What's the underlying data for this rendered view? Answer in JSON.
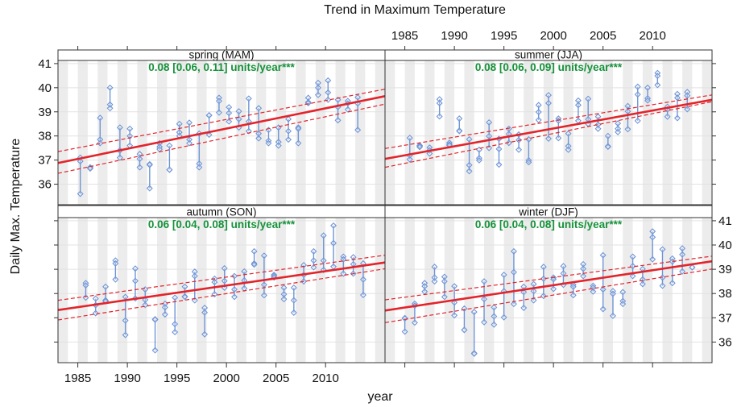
{
  "chart_data": {
    "type": "line",
    "title": "Trend in Maximum Temperature",
    "xlabel": "year",
    "ylabel": "Daily Max. Temperature",
    "xlim": [
      1983,
      2016
    ],
    "ylim": [
      35.15,
      41.13
    ],
    "x_ticks": [
      1985,
      1990,
      1995,
      2000,
      2005,
      2010
    ],
    "y_ticks": [
      36,
      37,
      38,
      39,
      40,
      41
    ],
    "grid": "horizontal lines at y ticks; alternating grey year bands",
    "colors": {
      "points": "#6f95d6",
      "trend": "#e3242b",
      "trend_label": "#16923a",
      "band": "#ececec",
      "grid": "#e2e2e2"
    },
    "panels": [
      {
        "strip": "spring (MAM)",
        "trend_label": "0.08 [0.06, 0.11] units/year***",
        "years": [
          1985,
          1986,
          1987,
          1988,
          1989,
          1990,
          1991,
          1992,
          1993,
          1994,
          1995,
          1996,
          1997,
          1998,
          1999,
          2000,
          2001,
          2002,
          2003,
          2004,
          2005,
          2006,
          2007,
          2008,
          2009,
          2010,
          2011,
          2012,
          2013
        ],
        "values": [
          [
            37.1,
            36.95,
            35.6
          ],
          [
            36.7,
            36.67,
            36.65
          ],
          [
            38.75,
            37.85,
            37.7
          ],
          [
            40.0,
            39.3,
            39.15
          ],
          [
            38.35,
            37.4,
            37.1
          ],
          [
            38.3,
            38.0,
            37.6
          ],
          [
            37.25,
            37.05,
            36.7
          ],
          [
            36.83,
            36.8,
            35.83
          ],
          [
            37.7,
            37.55,
            37.45
          ],
          [
            37.6,
            36.6,
            36.6
          ],
          [
            38.5,
            38.15,
            38.0
          ],
          [
            38.55,
            37.85,
            37.7
          ],
          [
            38.1,
            36.85,
            36.7
          ],
          [
            38.86,
            38.85,
            38.05
          ],
          [
            39.58,
            39.45,
            38.97
          ],
          [
            39.19,
            38.95,
            38.6
          ],
          [
            39.02,
            38.7,
            38.35
          ],
          [
            39.55,
            38.6,
            38.2
          ],
          [
            39.15,
            38.1,
            37.9
          ],
          [
            38.25,
            37.8,
            37.7
          ],
          [
            38.35,
            37.75,
            37.6
          ],
          [
            38.7,
            38.2,
            37.85
          ],
          [
            38.35,
            38.3,
            37.7
          ],
          [
            39.58,
            39.4,
            39.36
          ],
          [
            40.2,
            40.0,
            39.7
          ],
          [
            40.3,
            39.8,
            39.5
          ],
          [
            39.5,
            39.2,
            38.65
          ],
          [
            39.45,
            39.35,
            39.1
          ],
          [
            39.6,
            39.35,
            38.25
          ]
        ],
        "trend": {
          "x": [
            1983,
            2016
          ],
          "fit": [
            36.88,
            39.65
          ],
          "lower": [
            36.45,
            39.32
          ],
          "upper": [
            37.35,
            39.94
          ]
        }
      },
      {
        "strip": "summer (JJA)",
        "trend_label": "0.08 [0.06, 0.09] units/year***",
        "years": [
          1985,
          1986,
          1987,
          1988,
          1989,
          1990,
          1991,
          1992,
          1993,
          1994,
          1995,
          1996,
          1997,
          1998,
          1999,
          2000,
          2001,
          2002,
          2003,
          2004,
          2005,
          2006,
          2007,
          2008,
          2009,
          2010,
          2011,
          2012,
          2013
        ],
        "values": [
          [
            37.92,
            37.19,
            37.03
          ],
          [
            37.61,
            37.58,
            37.54
          ],
          [
            37.52,
            37.41,
            37.27
          ],
          [
            39.52,
            39.36,
            38.81
          ],
          [
            37.72,
            37.65,
            37.61
          ],
          [
            38.72,
            38.22,
            38.2
          ],
          [
            37.86,
            36.79,
            36.54
          ],
          [
            37.43,
            37.08,
            36.99
          ],
          [
            38.56,
            37.99,
            37.5
          ],
          [
            37.88,
            37.46,
            36.81
          ],
          [
            38.3,
            38.08,
            37.71
          ],
          [
            38.06,
            37.83,
            37.43
          ],
          [
            37.86,
            36.99,
            36.91
          ],
          [
            39.28,
            38.99,
            38.66
          ],
          [
            39.69,
            39.36,
            37.89
          ],
          [
            38.72,
            38.63,
            37.91
          ],
          [
            38.1,
            37.58,
            37.43
          ],
          [
            39.47,
            39.28,
            38.63
          ],
          [
            39.54,
            38.69,
            38.5
          ],
          [
            38.8,
            38.47,
            38.3
          ],
          [
            38.0,
            37.57,
            37.55
          ],
          [
            38.52,
            38.3,
            38.16
          ],
          [
            39.24,
            39.02,
            38.28
          ],
          [
            40.04,
            39.72,
            38.63
          ],
          [
            40.0,
            39.56,
            39.47
          ],
          [
            40.61,
            40.49,
            40.11
          ],
          [
            39.21,
            39.1,
            38.8
          ],
          [
            39.74,
            39.58,
            38.74
          ],
          [
            39.82,
            39.67,
            39.11
          ]
        ],
        "trend": {
          "x": [
            1983,
            2016
          ],
          "fit": [
            37.05,
            39.5
          ],
          "lower": [
            36.7,
            39.42
          ],
          "upper": [
            37.48,
            39.7
          ]
        }
      },
      {
        "strip": "autumn (SON)",
        "trend_label": "0.06 [0.04, 0.08] units/year***",
        "years": [
          1985,
          1986,
          1987,
          1988,
          1989,
          1990,
          1991,
          1992,
          1993,
          1994,
          1995,
          1996,
          1997,
          1998,
          1999,
          2000,
          2001,
          2002,
          2003,
          2004,
          2005,
          2006,
          2007,
          2008,
          2009,
          2010,
          2011,
          2012,
          2013
        ],
        "values": [
          [
            38.43,
            38.34,
            37.83
          ],
          [
            37.79,
            37.52,
            37.19
          ],
          [
            38.28,
            37.72,
            37.68
          ],
          [
            39.36,
            39.24,
            38.58
          ],
          [
            37.86,
            36.89,
            36.29
          ],
          [
            39.03,
            38.52,
            37.8
          ],
          [
            38.17,
            37.74,
            37.53
          ],
          [
            36.94,
            36.92,
            35.66
          ],
          [
            37.58,
            37.43,
            37.14
          ],
          [
            37.83,
            36.74,
            36.41
          ],
          [
            38.28,
            37.88,
            37.86
          ],
          [
            38.9,
            38.72,
            37.72
          ],
          [
            37.41,
            37.22,
            36.32
          ],
          [
            38.61,
            38.47,
            37.97
          ],
          [
            39.04,
            38.52,
            38.24
          ],
          [
            38.72,
            38.17,
            37.86
          ],
          [
            38.91,
            38.54,
            38.21
          ],
          [
            39.74,
            39.24,
            39.19
          ],
          [
            39.56,
            38.36,
            37.93
          ],
          [
            38.77,
            38.72,
            38.66
          ],
          [
            38.24,
            37.97,
            37.77
          ],
          [
            38.24,
            37.72,
            37.21
          ],
          [
            39.17,
            38.77,
            38.5
          ],
          [
            39.74,
            39.36,
            39.08
          ],
          [
            40.39,
            39.36,
            38.97
          ],
          [
            40.8,
            40.08,
            39.11
          ],
          [
            39.52,
            39.41,
            38.82
          ],
          [
            39.5,
            39.21,
            38.82
          ],
          [
            39.24,
            38.58,
            37.94
          ]
        ],
        "trend": {
          "x": [
            1983,
            2016
          ],
          "fit": [
            37.32,
            39.28
          ],
          "lower": [
            36.91,
            39.02
          ],
          "upper": [
            37.72,
            39.58
          ]
        }
      },
      {
        "strip": "winter (DJF)",
        "trend_label": "0.06 [0.04, 0.08] units/year***",
        "years": [
          1985,
          1986,
          1987,
          1988,
          1989,
          1990,
          1991,
          1992,
          1993,
          1994,
          1995,
          1996,
          1997,
          1998,
          1999,
          2000,
          2001,
          2002,
          2003,
          2004,
          2005,
          2006,
          2007,
          2008,
          2009,
          2010,
          2011,
          2012,
          2013,
          2014
        ],
        "values": [
          [
            36.99,
            36.97,
            36.43
          ],
          [
            37.58,
            37.5,
            36.8
          ],
          [
            38.43,
            38.3,
            38.08
          ],
          [
            39.1,
            38.66,
            38.5
          ],
          [
            38.69,
            38.5,
            37.86
          ],
          [
            38.3,
            37.63,
            37.1
          ],
          [
            37.38,
            36.5,
            36.5
          ],
          [
            37.24,
            35.54,
            35.52
          ],
          [
            38.5,
            37.77,
            36.82
          ],
          [
            37.43,
            37.06,
            36.72
          ],
          [
            38.77,
            38.1,
            37.02
          ],
          [
            39.74,
            38.88,
            37.57
          ],
          [
            38.28,
            38.06,
            37.41
          ],
          [
            38.39,
            38.1,
            37.72
          ],
          [
            39.1,
            38.61,
            37.9
          ],
          [
            38.66,
            38.59,
            38.19
          ],
          [
            39.13,
            38.83,
            38.36
          ],
          [
            38.36,
            38.28,
            37.93
          ],
          [
            39.21,
            39.02,
            38.72
          ],
          [
            38.32,
            38.24,
            38.08
          ],
          [
            39.58,
            38.17,
            37.36
          ],
          [
            38.1,
            37.99,
            37.08
          ],
          [
            38.06,
            37.69,
            37.57
          ],
          [
            39.52,
            39.13,
            38.72
          ],
          [
            39.01,
            38.58,
            38.39
          ],
          [
            40.56,
            40.32,
            39.41
          ],
          [
            39.82,
            38.66,
            38.32
          ],
          [
            39.44,
            39.32,
            38.43
          ],
          [
            39.86,
            39.61,
            38.91
          ],
          [
            39.08,
            39.08,
            39.08
          ]
        ],
        "trend": {
          "x": [
            1983,
            2016
          ],
          "fit": [
            37.3,
            39.33
          ],
          "lower": [
            36.8,
            39.01
          ],
          "upper": [
            37.74,
            39.54
          ]
        }
      }
    ]
  }
}
